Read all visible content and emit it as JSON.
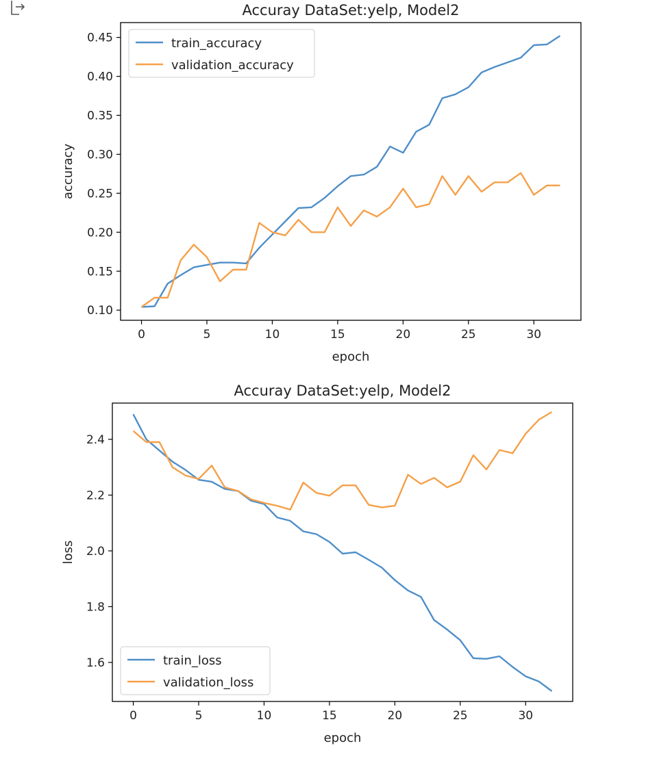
{
  "output": {
    "icon": "output-arrow-icon"
  },
  "colors": {
    "train": "#4e8ec8",
    "validation": "#f5a04a",
    "axis": "#000000",
    "text": "#222222"
  },
  "chart_data": [
    {
      "type": "line",
      "title": "Accuray DataSet:yelp, Model2",
      "xlabel": "epoch",
      "ylabel": "accuracy",
      "xlim": [
        -1.6,
        33.6
      ],
      "ylim": [
        0.087,
        0.469
      ],
      "xticks": [
        0,
        5,
        10,
        15,
        20,
        25,
        30
      ],
      "yticks": [
        0.1,
        0.15,
        0.2,
        0.25,
        0.3,
        0.35,
        0.4,
        0.45
      ],
      "ytick_decimals": 2,
      "grid": false,
      "legend": "upper left",
      "x": [
        0,
        1,
        2,
        3,
        4,
        5,
        6,
        7,
        8,
        9,
        10,
        11,
        12,
        13,
        14,
        15,
        16,
        17,
        18,
        19,
        20,
        21,
        22,
        23,
        24,
        25,
        26,
        27,
        28,
        29,
        30,
        31,
        32
      ],
      "series": [
        {
          "name": "train_accuracy",
          "color": "#4e8ec8",
          "values": [
            0.104,
            0.105,
            0.134,
            0.145,
            0.155,
            0.158,
            0.161,
            0.161,
            0.16,
            0.18,
            0.197,
            0.214,
            0.231,
            0.232,
            0.244,
            0.259,
            0.272,
            0.274,
            0.284,
            0.31,
            0.302,
            0.329,
            0.338,
            0.372,
            0.377,
            0.386,
            0.405,
            0.412,
            0.418,
            0.424,
            0.44,
            0.441,
            0.452
          ]
        },
        {
          "name": "validation_accuracy",
          "color": "#f5a04a",
          "values": [
            0.104,
            0.116,
            0.116,
            0.164,
            0.184,
            0.168,
            0.137,
            0.152,
            0.152,
            0.212,
            0.2,
            0.196,
            0.216,
            0.2,
            0.2,
            0.232,
            0.208,
            0.228,
            0.22,
            0.232,
            0.256,
            0.232,
            0.236,
            0.272,
            0.248,
            0.272,
            0.252,
            0.264,
            0.264,
            0.276,
            0.248,
            0.26,
            0.26
          ]
        }
      ]
    },
    {
      "type": "line",
      "title": "Accuray DataSet:yelp, Model2",
      "xlabel": "epoch",
      "ylabel": "loss",
      "xlim": [
        -1.6,
        33.6
      ],
      "ylim": [
        1.46,
        2.53
      ],
      "xticks": [
        0,
        5,
        10,
        15,
        20,
        25,
        30
      ],
      "yticks": [
        1.6,
        1.8,
        2.0,
        2.2,
        2.4
      ],
      "ytick_decimals": 1,
      "grid": false,
      "legend": "lower left",
      "x": [
        0,
        1,
        2,
        3,
        4,
        5,
        6,
        7,
        8,
        9,
        10,
        11,
        12,
        13,
        14,
        15,
        16,
        17,
        18,
        19,
        20,
        21,
        22,
        23,
        24,
        25,
        26,
        27,
        28,
        29,
        30,
        31,
        32
      ],
      "series": [
        {
          "name": "train_loss",
          "color": "#4e8ec8",
          "values": [
            2.49,
            2.4,
            2.36,
            2.32,
            2.29,
            2.255,
            2.248,
            2.222,
            2.215,
            2.18,
            2.168,
            2.12,
            2.108,
            2.07,
            2.06,
            2.032,
            1.99,
            1.995,
            1.968,
            1.94,
            1.895,
            1.858,
            1.835,
            1.752,
            1.718,
            1.68,
            1.615,
            1.613,
            1.622,
            1.584,
            1.55,
            1.532,
            1.497
          ]
        },
        {
          "name": "validation_loss",
          "color": "#f5a04a",
          "values": [
            2.43,
            2.39,
            2.39,
            2.3,
            2.27,
            2.258,
            2.306,
            2.228,
            2.215,
            2.185,
            2.172,
            2.162,
            2.148,
            2.245,
            2.208,
            2.198,
            2.235,
            2.235,
            2.165,
            2.156,
            2.162,
            2.273,
            2.24,
            2.262,
            2.228,
            2.248,
            2.343,
            2.292,
            2.362,
            2.35,
            2.42,
            2.47,
            2.498
          ]
        }
      ]
    }
  ]
}
